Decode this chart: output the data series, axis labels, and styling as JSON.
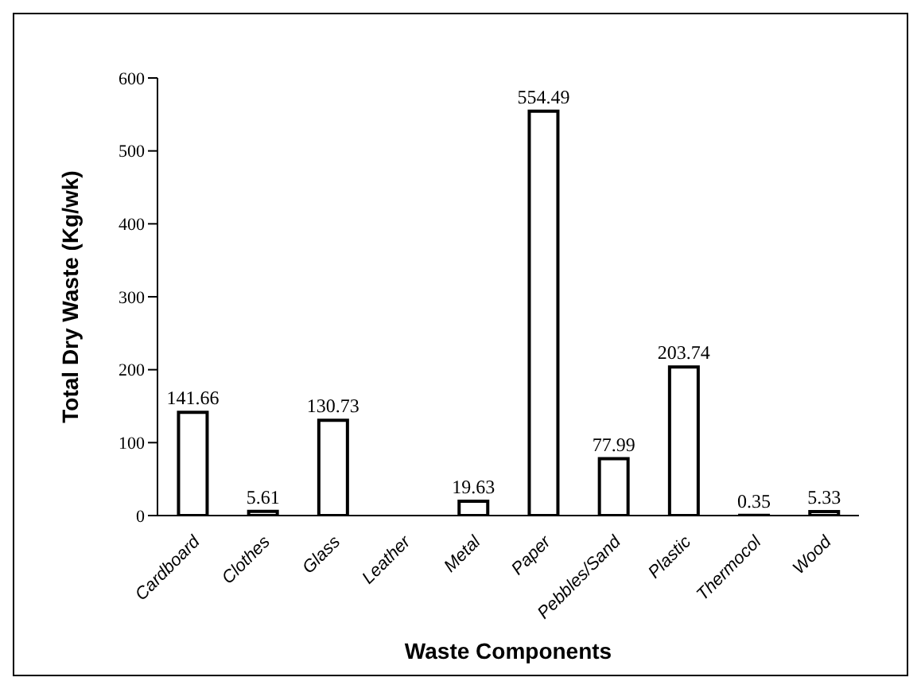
{
  "chart_data": {
    "type": "bar",
    "xlabel": "Waste Components",
    "ylabel": "Total Dry Waste (Kg/wk)",
    "categories": [
      "Cardboard",
      "Clothes",
      "Glass",
      "Leather",
      "Metal",
      "Paper",
      "Pebbles/Sand",
      "Plastic",
      "Thermocol",
      "Wood"
    ],
    "values": [
      141.66,
      5.61,
      130.73,
      0,
      19.63,
      554.49,
      77.99,
      203.74,
      0.35,
      5.33
    ],
    "value_labels": [
      "141.66",
      "5.61",
      "130.73",
      null,
      "19.63",
      "554.49",
      "77.99",
      "203.74",
      "0.35",
      "5.33"
    ],
    "color": "#ffffff",
    "ylim": [
      0,
      600
    ],
    "yticks": [
      0,
      100,
      200,
      300,
      400,
      500,
      600
    ],
    "grid": false
  }
}
